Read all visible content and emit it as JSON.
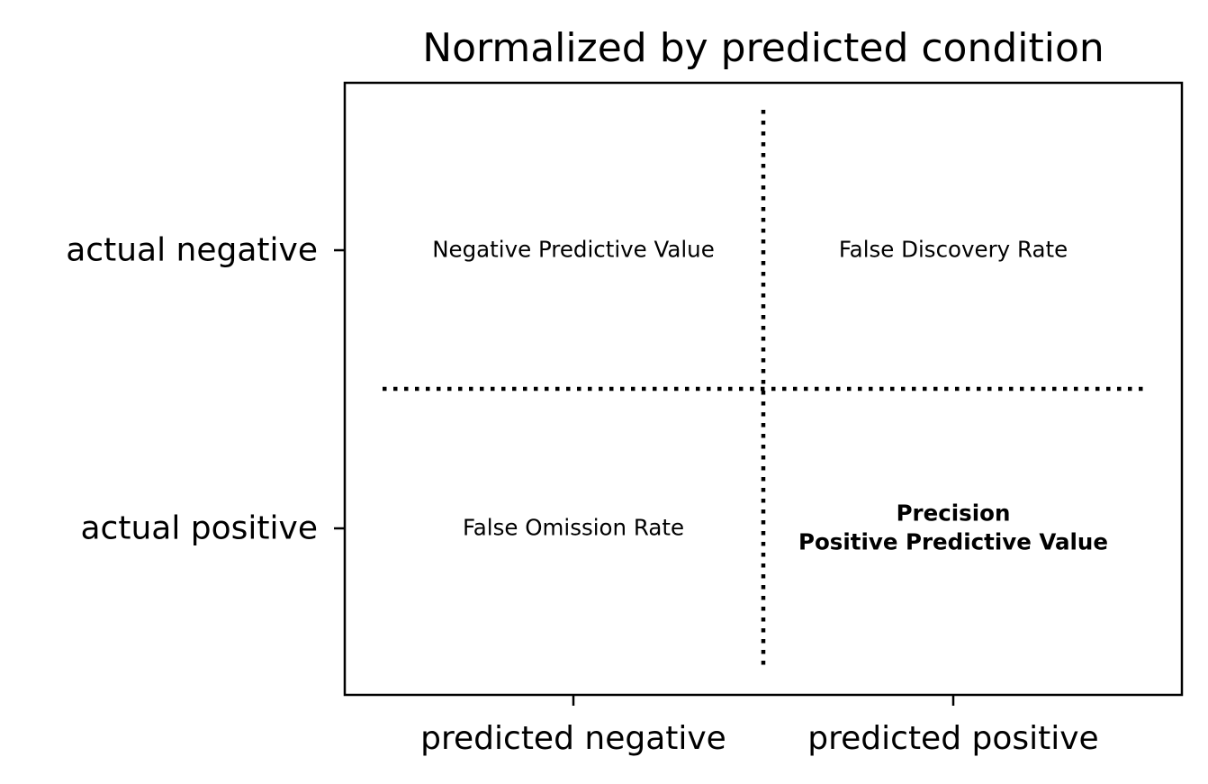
{
  "title": "Normalized by predicted condition",
  "x_axis": {
    "ticks": [
      "predicted negative",
      "predicted positive"
    ]
  },
  "y_axis": {
    "ticks": [
      "actual negative",
      "actual positive"
    ]
  },
  "cells": {
    "top_left": {
      "lines": [
        "Negative Predictive Value"
      ],
      "bold": false
    },
    "top_right": {
      "lines": [
        "False Discovery Rate"
      ],
      "bold": false
    },
    "bottom_left": {
      "lines": [
        "False Omission Rate"
      ],
      "bold": false
    },
    "bottom_right": {
      "lines": [
        "Precision",
        "Positive Predictive Value"
      ],
      "bold": true
    }
  },
  "style": {
    "line_color": "#000000",
    "background": "#ffffff",
    "divider_style": "dotted"
  }
}
